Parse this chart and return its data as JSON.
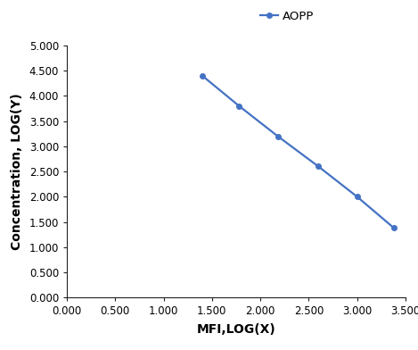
{
  "x": [
    1.4,
    1.78,
    2.18,
    2.6,
    3.0,
    3.38
  ],
  "y": [
    4.4,
    3.8,
    3.2,
    2.6,
    2.0,
    1.38
  ],
  "line_color": "#4472C4",
  "marker": "o",
  "marker_size": 4,
  "line_width": 1.6,
  "legend_label": "AOPP",
  "xlabel": "MFI,LOG(X)",
  "ylabel": "Concentration, LOG(Y)",
  "xlim": [
    0.0,
    3.5
  ],
  "ylim": [
    0.0,
    5.0
  ],
  "xticks": [
    0.0,
    0.5,
    1.0,
    1.5,
    2.0,
    2.5,
    3.0,
    3.5
  ],
  "yticks": [
    0.0,
    0.5,
    1.0,
    1.5,
    2.0,
    2.5,
    3.0,
    3.5,
    4.0,
    4.5,
    5.0
  ],
  "tick_label_fontsize": 8.5,
  "axis_label_fontsize": 10,
  "legend_fontsize": 9.5,
  "background_color": "#ffffff",
  "spine_color": "#222222"
}
